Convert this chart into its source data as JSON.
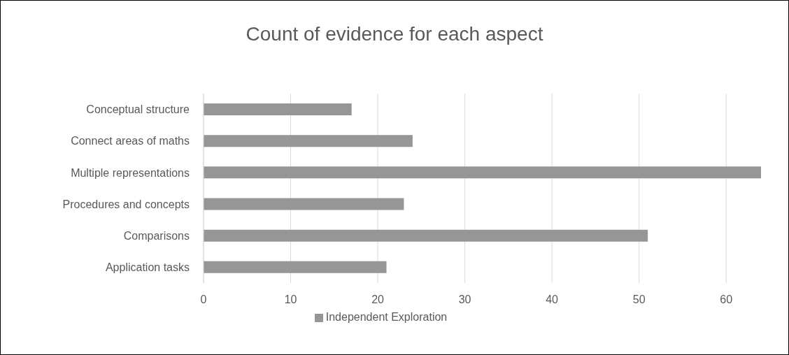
{
  "chart_data": {
    "type": "bar",
    "orientation": "horizontal",
    "title": "Count of evidence for each aspect",
    "categories": [
      "Conceptual structure",
      "Connect areas of maths",
      "Multiple representations",
      "Procedures and concepts",
      "Comparisons",
      "Application tasks"
    ],
    "series": [
      {
        "name": "Independent Exploration",
        "color": "#969696",
        "values": [
          17,
          24,
          64,
          23,
          51,
          21
        ]
      }
    ],
    "xlim": [
      0,
      64
    ],
    "xticks": [
      0,
      10,
      20,
      30,
      40,
      50,
      60
    ],
    "grid": "x",
    "legend": "bottom"
  }
}
